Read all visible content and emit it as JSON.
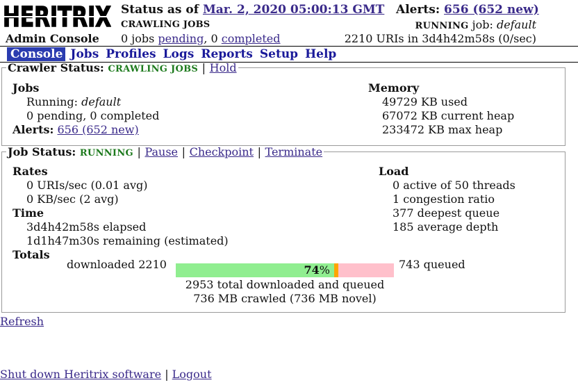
{
  "header": {
    "logo_text": "HERITRIX",
    "admin_console": "Admin Console",
    "status_prefix": "Status as of",
    "status_time": "Mar. 2, 2020 05:00:13 GMT",
    "crawling_state": "CRAWLING JOBS",
    "pending_count": "0 jobs",
    "pending_word": "pending",
    "completed_count": "0",
    "completed_word": "completed",
    "alerts_label": "Alerts:",
    "alerts_value": "656 (652 new)",
    "running_label": "RUNNING",
    "running_job_word": "job:",
    "running_job_name": "default",
    "uris_summary": "2210 URIs in 3d4h42m58s (0/sec)"
  },
  "nav": {
    "items": [
      "Console",
      "Jobs",
      "Profiles",
      "Logs",
      "Reports",
      "Setup",
      "Help"
    ]
  },
  "crawler_status": {
    "label": "Crawler Status:",
    "state": "CRAWLING JOBS",
    "hold_link": "Hold",
    "jobs_heading": "Jobs",
    "running_prefix": "Running:",
    "running_job": "default",
    "pending_completed": "0 pending, 0 completed",
    "alerts_label": "Alerts:",
    "alerts_value": "656 (652 new)",
    "memory_heading": "Memory",
    "memory_used": "49729 KB used",
    "memory_heap": "67072 KB current heap",
    "memory_max": "233472 KB max heap"
  },
  "job_status": {
    "label": "Job Status:",
    "state": "RUNNING",
    "pause_link": "Pause",
    "checkpoint_link": "Checkpoint",
    "terminate_link": "Terminate",
    "rates_heading": "Rates",
    "rate_uris": "0 URIs/sec (0.01 avg)",
    "rate_kb": "0 KB/sec (2 avg)",
    "time_heading": "Time",
    "elapsed": "3d4h42m58s elapsed",
    "remaining": "1d1h47m30s remaining (estimated)",
    "totals_heading": "Totals",
    "load_heading": "Load",
    "active_threads": "0 active of 50 threads",
    "congestion": "1 congestion ratio",
    "deepest_queue": "377 deepest queue",
    "average_depth": "185 average depth",
    "downloaded_label": "downloaded 2210",
    "percent_number": "74",
    "percent_sign": "%",
    "queued_label": "743 queued",
    "total_line": "2953 total downloaded and queued",
    "crawled_line": "736 MB crawled (736 MB novel)"
  },
  "progress": {
    "downloaded_fraction": 0.74,
    "active_fraction": 0.02,
    "done_color": "#90ee90",
    "active_color": "#ffa500",
    "queued_color": "#ffc0cb"
  },
  "links": {
    "refresh": "Refresh",
    "shutdown": "Shut down Heritrix software",
    "separator": "|",
    "logout": "Logout"
  },
  "colors": {
    "nav_active_bg": "#2a3cb0",
    "status_green": "#1d7a1d",
    "link": "#3a2a8a"
  }
}
